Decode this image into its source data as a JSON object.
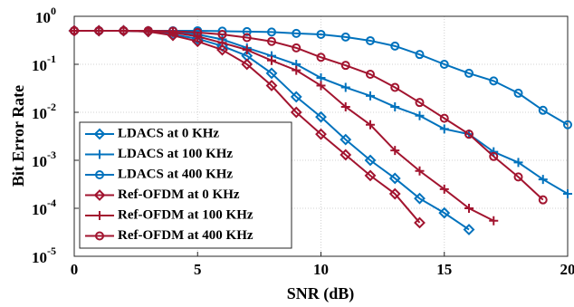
{
  "chart_data": {
    "type": "line",
    "xlabel": "SNR (dB)",
    "ylabel": "Bit Error Rate",
    "xlim": [
      0,
      20
    ],
    "xticks": [
      0,
      5,
      10,
      15,
      20
    ],
    "ylim": [
      1e-05,
      1
    ],
    "yscale": "log",
    "yticks": [
      {
        "value": 1e-05,
        "label": "10",
        "exponent": "-5"
      },
      {
        "value": 0.0001,
        "label": "10",
        "exponent": "-4"
      },
      {
        "value": 0.001,
        "label": "10",
        "exponent": "-3"
      },
      {
        "value": 0.01,
        "label": "10",
        "exponent": "-2"
      },
      {
        "value": 0.1,
        "label": "10",
        "exponent": "-1"
      },
      {
        "value": 1,
        "label": "10",
        "exponent": "0"
      }
    ],
    "grid": true,
    "legend": "lower left",
    "series": [
      {
        "name": "LDACS at 0 KHz",
        "color": "#0072bd",
        "marker": "diamond",
        "x": [
          0,
          1,
          2,
          3,
          4,
          5,
          6,
          7,
          8,
          9,
          10,
          11,
          12,
          13,
          14,
          15,
          16
        ],
        "values": [
          0.5,
          0.5,
          0.5,
          0.48,
          0.42,
          0.34,
          0.24,
          0.15,
          0.065,
          0.021,
          0.008,
          0.0027,
          0.001,
          0.00042,
          0.00016,
          8e-05,
          3.6e-05
        ]
      },
      {
        "name": "LDACS at 100 KHz",
        "color": "#0072bd",
        "marker": "plus",
        "x": [
          0,
          1,
          2,
          3,
          4,
          5,
          6,
          7,
          8,
          9,
          10,
          11,
          12,
          13,
          14,
          15,
          16,
          17,
          18,
          19,
          20
        ],
        "values": [
          0.5,
          0.5,
          0.5,
          0.49,
          0.47,
          0.42,
          0.33,
          0.22,
          0.15,
          0.1,
          0.052,
          0.033,
          0.022,
          0.013,
          0.0085,
          0.0045,
          0.0035,
          0.0015,
          0.0009,
          0.0004,
          0.0002
        ]
      },
      {
        "name": "LDACS at 400 KHz",
        "color": "#0072bd",
        "marker": "circle",
        "x": [
          0,
          1,
          2,
          3,
          4,
          5,
          6,
          7,
          8,
          9,
          10,
          11,
          12,
          13,
          14,
          15,
          16,
          17,
          18,
          19,
          20
        ],
        "values": [
          0.5,
          0.5,
          0.5,
          0.5,
          0.5,
          0.5,
          0.49,
          0.48,
          0.47,
          0.44,
          0.42,
          0.37,
          0.31,
          0.24,
          0.16,
          0.1,
          0.065,
          0.045,
          0.025,
          0.011,
          0.0055
        ]
      },
      {
        "name": "Ref-OFDM at 0 KHz",
        "color": "#a2142f",
        "marker": "diamond",
        "x": [
          0,
          1,
          2,
          3,
          4,
          5,
          6,
          7,
          8,
          9,
          10,
          11,
          12,
          13,
          14
        ],
        "values": [
          0.5,
          0.5,
          0.5,
          0.48,
          0.4,
          0.3,
          0.2,
          0.1,
          0.036,
          0.01,
          0.0035,
          0.0013,
          0.00048,
          0.0002,
          5e-05
        ]
      },
      {
        "name": "Ref-OFDM at 100 KHz",
        "color": "#a2142f",
        "marker": "plus",
        "x": [
          0,
          1,
          2,
          3,
          4,
          5,
          6,
          7,
          8,
          9,
          10,
          11,
          12,
          13,
          14,
          15,
          16,
          17
        ],
        "values": [
          0.5,
          0.5,
          0.5,
          0.49,
          0.46,
          0.38,
          0.28,
          0.2,
          0.12,
          0.075,
          0.036,
          0.013,
          0.0055,
          0.0016,
          0.0006,
          0.00025,
          0.0001,
          5.5e-05
        ]
      },
      {
        "name": "Ref-OFDM at 400 KHz",
        "color": "#a2142f",
        "marker": "circle",
        "x": [
          0,
          1,
          2,
          3,
          4,
          5,
          6,
          7,
          8,
          9,
          10,
          11,
          12,
          13,
          14,
          15,
          16,
          17,
          18,
          19
        ],
        "values": [
          0.5,
          0.5,
          0.5,
          0.5,
          0.49,
          0.46,
          0.42,
          0.36,
          0.3,
          0.22,
          0.14,
          0.095,
          0.062,
          0.033,
          0.016,
          0.0075,
          0.0035,
          0.0012,
          0.00045,
          0.00015
        ]
      }
    ]
  }
}
